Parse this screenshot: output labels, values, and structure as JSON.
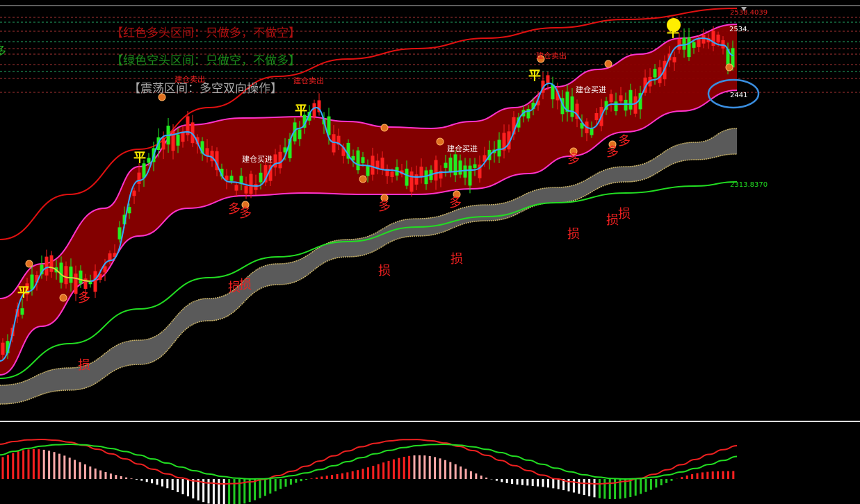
{
  "legend": [
    "【红色多头区间：只做多，不做空】",
    "【绿色空头区间：只做空，不做多】",
    "【震荡区间：多空双向操作】"
  ],
  "price_labels": [
    "2538.4039",
    "2534.",
    "2441",
    "2313.8370"
  ],
  "flat_marks": [
    "平",
    "平",
    "平",
    "平",
    "平"
  ],
  "long_marks": [
    "多",
    "多",
    "多",
    "多",
    "多",
    "多",
    "多",
    "多",
    "多"
  ],
  "stop_marks": [
    "损",
    "损",
    "损",
    "损",
    "损",
    "损",
    "损",
    "损"
  ],
  "sell_marks": [
    "建仓卖出",
    "建仓卖出",
    "建仓卖出"
  ],
  "buy_marks": [
    "建仓买进",
    "建仓买进",
    "建仓买进"
  ]
}
